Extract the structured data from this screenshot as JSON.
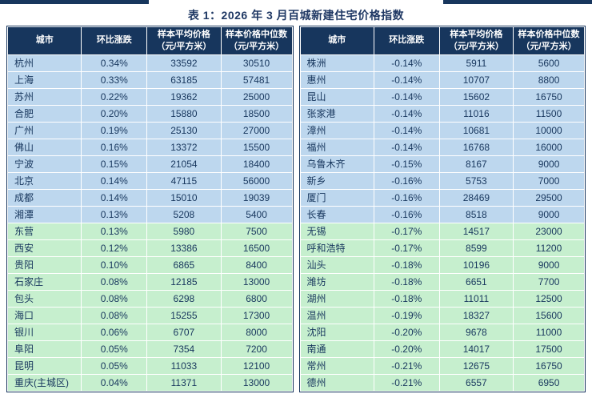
{
  "title": "表 1：2026 年 3 月百城新建住宅价格指数",
  "columns": {
    "city": "城市",
    "change": "环比涨跌",
    "avg_line1": "样本平均价格",
    "avg_line2": "（元/平方米）",
    "median_line1": "样本价格中位数",
    "median_line2": "（元/平方米）"
  },
  "colors": {
    "header_bg": "#17365D",
    "row_blue": "#BDD7EE",
    "row_green": "#C6EFCE",
    "text": "#17365D",
    "title": "#1F3864",
    "rule": "#17365D"
  },
  "tables": [
    {
      "id": "left",
      "rows": [
        {
          "city": "杭州",
          "change": "0.34%",
          "avg": "33592",
          "median": "30510",
          "tone": "blue"
        },
        {
          "city": "上海",
          "change": "0.33%",
          "avg": "63185",
          "median": "57481",
          "tone": "blue"
        },
        {
          "city": "苏州",
          "change": "0.22%",
          "avg": "19362",
          "median": "25000",
          "tone": "blue"
        },
        {
          "city": "合肥",
          "change": "0.20%",
          "avg": "15880",
          "median": "18500",
          "tone": "blue"
        },
        {
          "city": "广州",
          "change": "0.19%",
          "avg": "25130",
          "median": "27000",
          "tone": "blue"
        },
        {
          "city": "佛山",
          "change": "0.16%",
          "avg": "13372",
          "median": "15500",
          "tone": "blue"
        },
        {
          "city": "宁波",
          "change": "0.15%",
          "avg": "21054",
          "median": "18400",
          "tone": "blue"
        },
        {
          "city": "北京",
          "change": "0.14%",
          "avg": "47115",
          "median": "56000",
          "tone": "blue"
        },
        {
          "city": "成都",
          "change": "0.14%",
          "avg": "15010",
          "median": "19039",
          "tone": "blue"
        },
        {
          "city": "湘潭",
          "change": "0.13%",
          "avg": "5208",
          "median": "5400",
          "tone": "blue"
        },
        {
          "city": "东营",
          "change": "0.13%",
          "avg": "5980",
          "median": "7500",
          "tone": "green"
        },
        {
          "city": "西安",
          "change": "0.12%",
          "avg": "13386",
          "median": "16500",
          "tone": "green"
        },
        {
          "city": "贵阳",
          "change": "0.10%",
          "avg": "6865",
          "median": "8400",
          "tone": "green"
        },
        {
          "city": "石家庄",
          "change": "0.08%",
          "avg": "12185",
          "median": "13000",
          "tone": "green"
        },
        {
          "city": "包头",
          "change": "0.08%",
          "avg": "6298",
          "median": "6800",
          "tone": "green"
        },
        {
          "city": "海口",
          "change": "0.08%",
          "avg": "15255",
          "median": "17300",
          "tone": "green"
        },
        {
          "city": "银川",
          "change": "0.06%",
          "avg": "6707",
          "median": "8000",
          "tone": "green"
        },
        {
          "city": "阜阳",
          "change": "0.05%",
          "avg": "7354",
          "median": "7200",
          "tone": "green"
        },
        {
          "city": "昆明",
          "change": "0.05%",
          "avg": "11033",
          "median": "12100",
          "tone": "green"
        },
        {
          "city": "重庆(主城区)",
          "change": "0.04%",
          "avg": "11371",
          "median": "13000",
          "tone": "green"
        }
      ]
    },
    {
      "id": "right",
      "rows": [
        {
          "city": "株洲",
          "change": "-0.14%",
          "avg": "5911",
          "median": "5600",
          "tone": "blue"
        },
        {
          "city": "惠州",
          "change": "-0.14%",
          "avg": "10707",
          "median": "8800",
          "tone": "blue"
        },
        {
          "city": "昆山",
          "change": "-0.14%",
          "avg": "15602",
          "median": "16750",
          "tone": "blue"
        },
        {
          "city": "张家港",
          "change": "-0.14%",
          "avg": "11016",
          "median": "11500",
          "tone": "blue"
        },
        {
          "city": "漳州",
          "change": "-0.14%",
          "avg": "10681",
          "median": "10000",
          "tone": "blue"
        },
        {
          "city": "福州",
          "change": "-0.14%",
          "avg": "16768",
          "median": "16000",
          "tone": "blue"
        },
        {
          "city": "乌鲁木齐",
          "change": "-0.15%",
          "avg": "8167",
          "median": "9000",
          "tone": "blue"
        },
        {
          "city": "新乡",
          "change": "-0.16%",
          "avg": "5753",
          "median": "7000",
          "tone": "blue"
        },
        {
          "city": "厦门",
          "change": "-0.16%",
          "avg": "28469",
          "median": "29500",
          "tone": "blue"
        },
        {
          "city": "长春",
          "change": "-0.16%",
          "avg": "8518",
          "median": "9000",
          "tone": "blue"
        },
        {
          "city": "无锡",
          "change": "-0.17%",
          "avg": "14517",
          "median": "23000",
          "tone": "green"
        },
        {
          "city": "呼和浩特",
          "change": "-0.17%",
          "avg": "8599",
          "median": "11200",
          "tone": "green"
        },
        {
          "city": "汕头",
          "change": "-0.18%",
          "avg": "10196",
          "median": "9000",
          "tone": "green"
        },
        {
          "city": "潍坊",
          "change": "-0.18%",
          "avg": "6651",
          "median": "7700",
          "tone": "green"
        },
        {
          "city": "湖州",
          "change": "-0.18%",
          "avg": "11011",
          "median": "12500",
          "tone": "green"
        },
        {
          "city": "温州",
          "change": "-0.19%",
          "avg": "18327",
          "median": "15600",
          "tone": "green"
        },
        {
          "city": "沈阳",
          "change": "-0.20%",
          "avg": "9678",
          "median": "11000",
          "tone": "green"
        },
        {
          "city": "南通",
          "change": "-0.20%",
          "avg": "14017",
          "median": "17500",
          "tone": "green"
        },
        {
          "city": "常州",
          "change": "-0.21%",
          "avg": "12675",
          "median": "16750",
          "tone": "green"
        },
        {
          "city": "德州",
          "change": "-0.21%",
          "avg": "6557",
          "median": "6950",
          "tone": "green"
        }
      ]
    }
  ]
}
